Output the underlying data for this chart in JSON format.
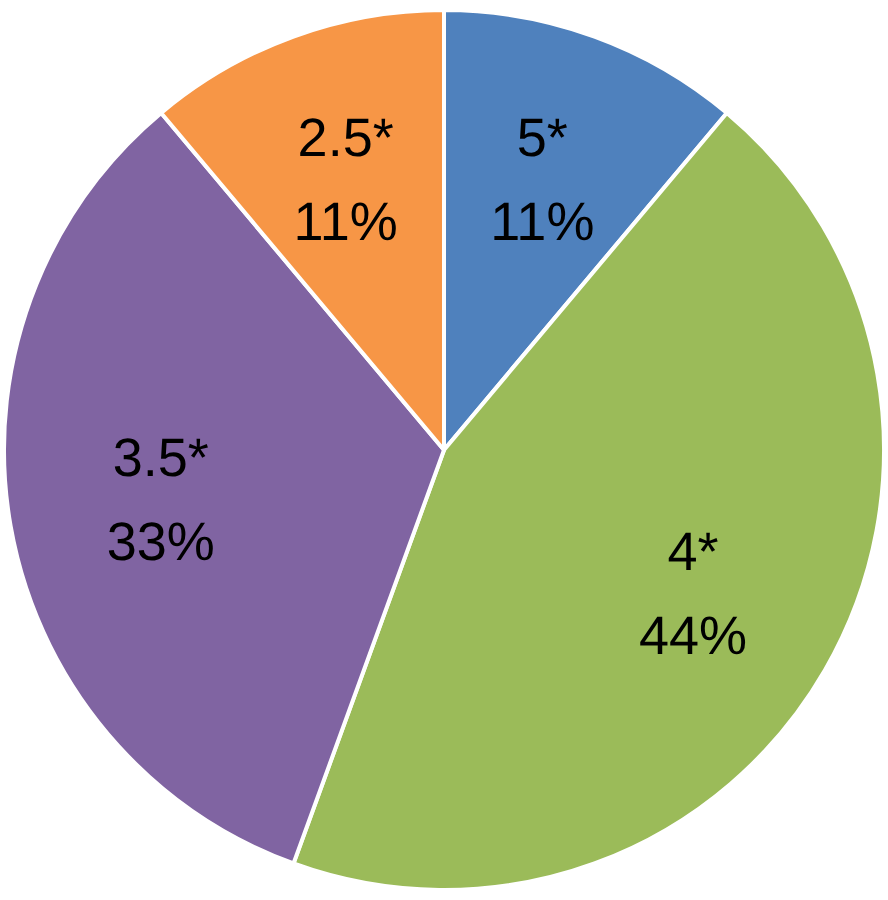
{
  "chart_data": {
    "type": "pie",
    "categories": [
      "5*",
      "4*",
      "3.5*",
      "2.5*"
    ],
    "values": [
      11,
      44,
      33,
      11
    ],
    "value_labels": [
      "11%",
      "44%",
      "33%",
      "11%"
    ],
    "colors": [
      "#4f81bd",
      "#9bbb59",
      "#8064a2",
      "#f79646"
    ],
    "legend": false
  }
}
